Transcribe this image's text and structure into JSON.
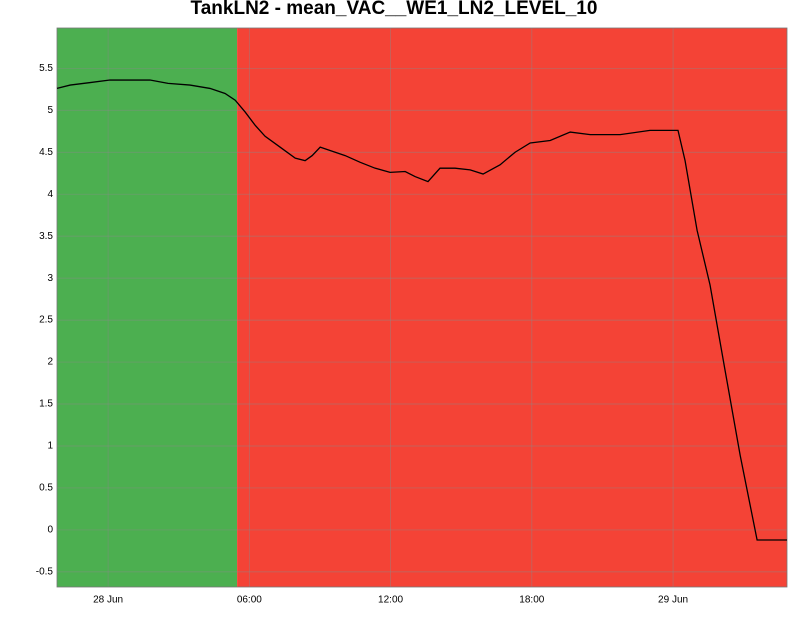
{
  "chart_data": {
    "type": "line",
    "title": "TankLN2 - mean_VAC__WE1_LN2_LEVEL_10",
    "x": [
      -2.17,
      -1.61,
      -0.76,
      0.08,
      0.72,
      1.78,
      2.55,
      3.48,
      4.33,
      4.97,
      5.4,
      5.82,
      6.25,
      6.67,
      7.31,
      7.95,
      8.37,
      8.67,
      9.01,
      9.43,
      10.07,
      10.71,
      11.34,
      11.98,
      12.62,
      13.04,
      13.59,
      14.1,
      14.74,
      15.38,
      15.93,
      16.65,
      17.29,
      17.93,
      18.78,
      19.63,
      20.48,
      21.75,
      23.02,
      24.21,
      24.51,
      25.02,
      25.57,
      26.21,
      26.85,
      27.57,
      28.84
    ],
    "series": [
      {
        "color": "#000000",
        "values": [
          5.26,
          5.3,
          5.33,
          5.36,
          5.36,
          5.36,
          5.32,
          5.3,
          5.26,
          5.2,
          5.12,
          4.98,
          4.82,
          4.69,
          4.56,
          4.43,
          4.4,
          4.46,
          4.56,
          4.52,
          4.46,
          4.38,
          4.31,
          4.26,
          4.27,
          4.21,
          4.15,
          4.31,
          4.31,
          4.29,
          4.24,
          4.35,
          4.5,
          4.61,
          4.64,
          4.74,
          4.71,
          4.71,
          4.76,
          4.76,
          4.4,
          3.57,
          2.92,
          1.9,
          0.89,
          -0.12,
          -0.12
        ]
      }
    ],
    "bands": [
      {
        "from": -2.17,
        "to": 5.48,
        "color": "#4caf50"
      },
      {
        "from": 5.48,
        "to": 28.84,
        "color": "#f44336"
      }
    ],
    "xlim": [
      -2.17,
      28.84
    ],
    "xticks": [
      {
        "value": 0,
        "label": "28 Jun"
      },
      {
        "value": 6,
        "label": "06:00"
      },
      {
        "value": 12,
        "label": "12:00"
      },
      {
        "value": 18,
        "label": "18:00"
      },
      {
        "value": 24,
        "label": "29 Jun"
      }
    ],
    "ylim": [
      -0.68,
      5.98
    ],
    "yticks": [
      -0.5,
      0,
      0.5,
      1,
      1.5,
      2,
      2.5,
      3,
      3.5,
      4,
      4.5,
      5,
      5.5
    ],
    "grid": true
  }
}
